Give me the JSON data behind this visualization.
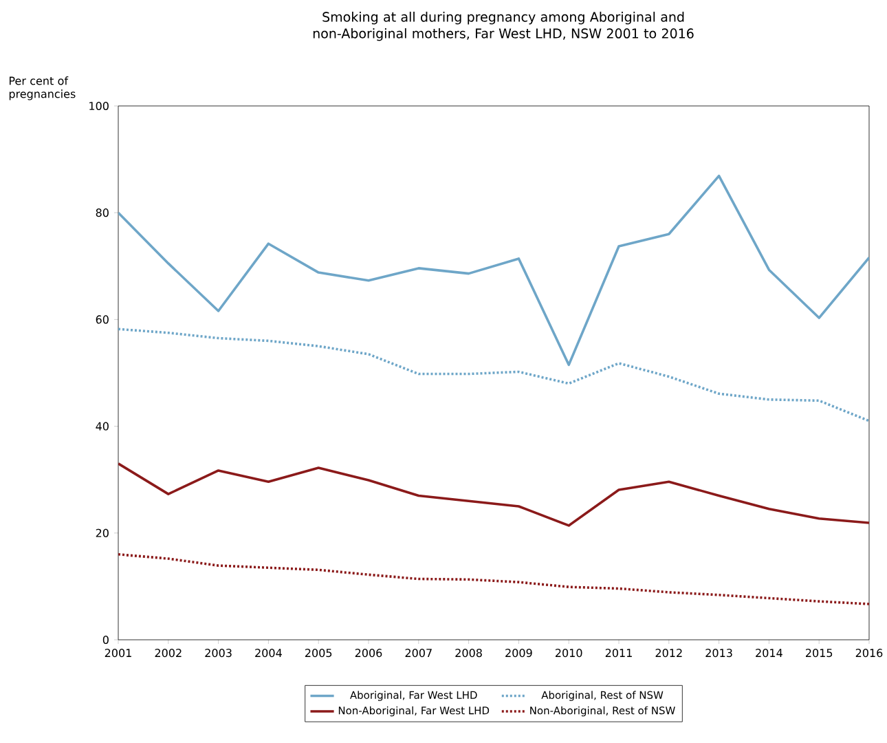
{
  "chart_data": {
    "type": "line",
    "title": "Smoking at all during pregnancy among Aboriginal and non-Aboriginal mothers, Far West LHD, NSW 2001 to 2016",
    "ylabel": "Per cent of pregnancies",
    "x": [
      2001,
      2002,
      2003,
      2004,
      2005,
      2006,
      2007,
      2008,
      2009,
      2010,
      2011,
      2012,
      2013,
      2014,
      2015,
      2016
    ],
    "xlim": [
      2001,
      2016
    ],
    "xticks": [
      2001,
      2002,
      2003,
      2004,
      2005,
      2006,
      2007,
      2008,
      2009,
      2010,
      2011,
      2012,
      2013,
      2014,
      2015,
      2016
    ],
    "ylim": [
      0,
      100
    ],
    "yticks": [
      0,
      20,
      40,
      60,
      80,
      100
    ],
    "grid": false,
    "legend": "bottom",
    "series": [
      {
        "name": "Aboriginal, Far West LHD",
        "color": "#6ea6c8",
        "line_style": "solid",
        "values": [
          80,
          70.5,
          61.6,
          74.2,
          68.8,
          67.3,
          69.6,
          68.6,
          71.4,
          51.5,
          73.7,
          76,
          86.9,
          69.3,
          60.3,
          71.6
        ]
      },
      {
        "name": "Aboriginal, Rest of NSW",
        "color": "#6ea6c8",
        "line_style": "dotted",
        "values": [
          58.2,
          57.5,
          56.5,
          56,
          55,
          53.5,
          49.8,
          49.8,
          50.2,
          48,
          51.8,
          49.3,
          46.1,
          45,
          44.8,
          41
        ]
      },
      {
        "name": "Non-Aboriginal, Far West LHD",
        "color": "#8b1a1a",
        "line_style": "solid",
        "values": [
          33,
          27.3,
          31.7,
          29.6,
          32.2,
          29.9,
          27,
          26,
          25,
          21.4,
          28.1,
          29.6,
          27,
          24.5,
          22.7,
          21.9
        ]
      },
      {
        "name": "Non-Aboriginal, Rest of NSW",
        "color": "#8b1a1a",
        "line_style": "dotted",
        "values": [
          16,
          15.2,
          13.9,
          13.5,
          13.1,
          12.2,
          11.4,
          11.3,
          10.8,
          9.9,
          9.6,
          8.9,
          8.4,
          7.8,
          7.2,
          6.7
        ]
      }
    ]
  }
}
